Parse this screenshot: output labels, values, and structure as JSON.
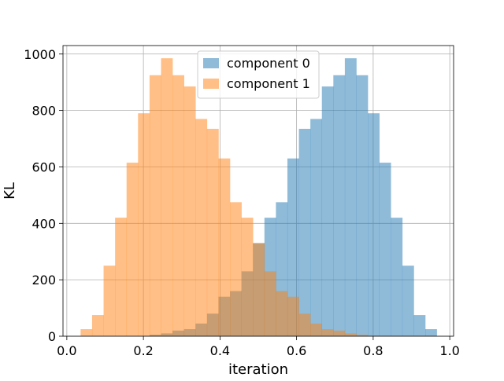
{
  "chart_data": {
    "type": "histogram",
    "title": "",
    "xlabel": "iteration",
    "ylabel": "KL",
    "xlim": [
      -0.01,
      1.01
    ],
    "ylim": [
      0,
      1030
    ],
    "xticks": [
      "0.0",
      "0.2",
      "0.4",
      "0.6",
      "0.8",
      "1.0"
    ],
    "yticks": [
      "0",
      "200",
      "400",
      "600",
      "800",
      "1000"
    ],
    "grid": true,
    "legend_position": "upper-center",
    "bin_edges": [
      0.036,
      0.066,
      0.096,
      0.126,
      0.156,
      0.186,
      0.216,
      0.246,
      0.276,
      0.306,
      0.336,
      0.366,
      0.396,
      0.426,
      0.456,
      0.486,
      0.516,
      0.546,
      0.576,
      0.606,
      0.636,
      0.666,
      0.696,
      0.726,
      0.756,
      0.786,
      0.816,
      0.846,
      0.876,
      0.906,
      0.936,
      0.966
    ],
    "series": [
      {
        "name": "component 0",
        "color": "#1f77b4",
        "alpha": 0.5,
        "values": [
          0,
          0,
          0,
          0,
          0,
          0,
          5,
          10,
          20,
          25,
          45,
          80,
          140,
          160,
          230,
          330,
          420,
          475,
          630,
          735,
          770,
          885,
          925,
          985,
          925,
          790,
          615,
          420,
          250,
          75,
          25
        ]
      },
      {
        "name": "component 1",
        "color": "#ff7f0e",
        "alpha": 0.5,
        "values": [
          25,
          75,
          250,
          420,
          615,
          790,
          925,
          985,
          925,
          885,
          770,
          735,
          630,
          475,
          420,
          330,
          230,
          160,
          140,
          80,
          45,
          25,
          20,
          10,
          5,
          0,
          0,
          0,
          0,
          0,
          0
        ]
      }
    ]
  }
}
